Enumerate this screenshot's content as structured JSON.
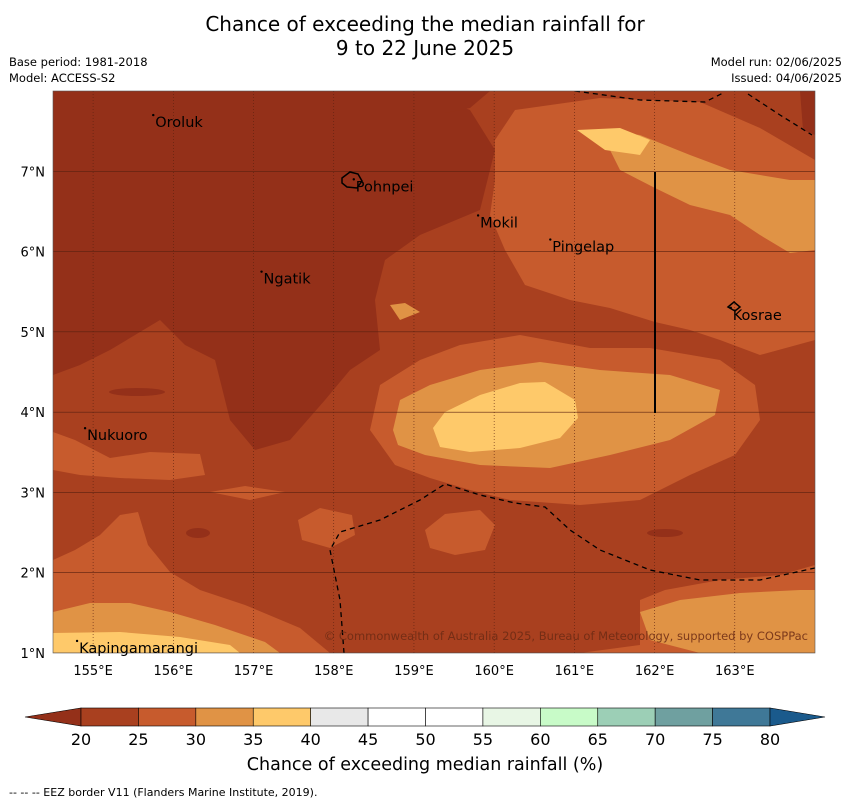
{
  "title_line1": "Chance of exceeding the median rainfall for",
  "title_line2": "9 to 22 June 2025",
  "meta": {
    "base_period": "Base period: 1981-2018",
    "model": "Model: ACCESS-S2",
    "model_run": "Model run: 02/06/2025",
    "issued": "Issued: 04/06/2025"
  },
  "map": {
    "lat_ticks": [
      "7°N",
      "6°N",
      "5°N",
      "4°N",
      "3°N",
      "2°N",
      "1°N"
    ],
    "lon_ticks": [
      "155°E",
      "156°E",
      "157°E",
      "158°E",
      "159°E",
      "160°E",
      "161°E",
      "162°E",
      "163°E"
    ],
    "places": [
      {
        "name": "Oroluk",
        "lon": 155.75,
        "lat": 7.65
      },
      {
        "name": "Pohnpei",
        "lon": 158.25,
        "lat": 6.85
      },
      {
        "name": "Mokil",
        "lon": 159.8,
        "lat": 6.4
      },
      {
        "name": "Pingelap",
        "lon": 160.7,
        "lat": 6.1
      },
      {
        "name": "Ngatik",
        "lon": 157.1,
        "lat": 5.7
      },
      {
        "name": "Kosrae",
        "lon": 162.95,
        "lat": 5.25
      },
      {
        "name": "Nukuoro",
        "lon": 154.9,
        "lat": 3.75
      },
      {
        "name": "Kapingamarangi",
        "lon": 154.8,
        "lat": 1.1
      }
    ],
    "copyright": "© Commonwealth of Australia 2025, Bureau of Meteorology, supported by COSPPac",
    "extent": {
      "lon": [
        154.5,
        164
      ],
      "lat": [
        1,
        8
      ]
    }
  },
  "colorbar": {
    "title": "Chance of exceeding median rainfall (%)",
    "ticks": [
      "20",
      "25",
      "30",
      "35",
      "40",
      "45",
      "50",
      "55",
      "60",
      "65",
      "70",
      "75",
      "80"
    ],
    "colors": [
      "#a9401f",
      "#c75b2d",
      "#e09345",
      "#fec96a",
      "#e8e8e8",
      "#ffffff",
      "#ffffff",
      "#e8f6e5",
      "#c8fbc8",
      "#9ccfb6",
      "#6fa0a0",
      "#3f7897"
    ],
    "under_color": "#943019",
    "over_color": "#1a5a8c"
  },
  "eez_note": "--  --  -- EEZ border V11 (Flanders Marine Institute, 2019)."
}
